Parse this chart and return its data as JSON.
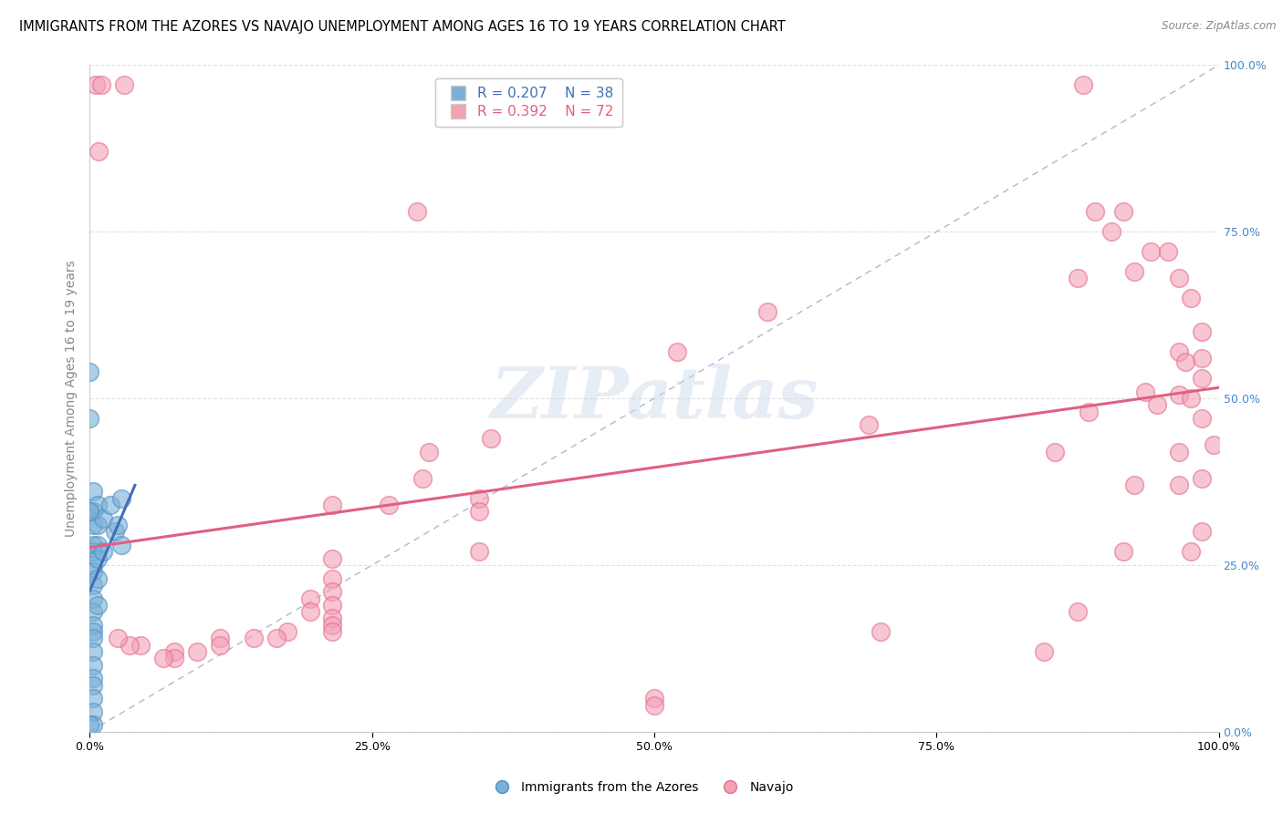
{
  "title": "IMMIGRANTS FROM THE AZORES VS NAVAJO UNEMPLOYMENT AMONG AGES 16 TO 19 YEARS CORRELATION CHART",
  "source": "Source: ZipAtlas.com",
  "ylabel": "Unemployment Among Ages 16 to 19 years",
  "xlim": [
    0.0,
    1.0
  ],
  "ylim": [
    0.0,
    1.0
  ],
  "xticks": [
    0.0,
    0.25,
    0.5,
    0.75,
    1.0
  ],
  "xtick_labels": [
    "0.0%",
    "25.0%",
    "50.0%",
    "75.0%",
    "100.0%"
  ],
  "ytick_labels_right": [
    "0.0%",
    "25.0%",
    "50.0%",
    "75.0%",
    "100.0%"
  ],
  "watermark_text": "ZIPatlas",
  "azores_points": [
    [
      0.0,
      0.54
    ],
    [
      0.0,
      0.47
    ],
    [
      0.0,
      0.33
    ],
    [
      0.003,
      0.36
    ],
    [
      0.003,
      0.33
    ],
    [
      0.003,
      0.31
    ],
    [
      0.003,
      0.28
    ],
    [
      0.003,
      0.27
    ],
    [
      0.003,
      0.25
    ],
    [
      0.003,
      0.24
    ],
    [
      0.003,
      0.22
    ],
    [
      0.003,
      0.2
    ],
    [
      0.003,
      0.18
    ],
    [
      0.003,
      0.16
    ],
    [
      0.003,
      0.15
    ],
    [
      0.003,
      0.14
    ],
    [
      0.003,
      0.12
    ],
    [
      0.003,
      0.1
    ],
    [
      0.003,
      0.08
    ],
    [
      0.003,
      0.07
    ],
    [
      0.003,
      0.05
    ],
    [
      0.003,
      0.03
    ],
    [
      0.003,
      0.01
    ],
    [
      0.007,
      0.34
    ],
    [
      0.007,
      0.31
    ],
    [
      0.007,
      0.28
    ],
    [
      0.007,
      0.26
    ],
    [
      0.007,
      0.23
    ],
    [
      0.007,
      0.19
    ],
    [
      0.012,
      0.32
    ],
    [
      0.012,
      0.27
    ],
    [
      0.018,
      0.34
    ],
    [
      0.022,
      0.3
    ],
    [
      0.025,
      0.31
    ],
    [
      0.028,
      0.35
    ],
    [
      0.028,
      0.28
    ],
    [
      0.0,
      0.01
    ],
    [
      0.0,
      0.33
    ]
  ],
  "navajo_points": [
    [
      0.005,
      0.97
    ],
    [
      0.01,
      0.97
    ],
    [
      0.03,
      0.97
    ],
    [
      0.88,
      0.97
    ],
    [
      0.008,
      0.87
    ],
    [
      0.29,
      0.78
    ],
    [
      0.89,
      0.78
    ],
    [
      0.915,
      0.78
    ],
    [
      0.905,
      0.75
    ],
    [
      0.94,
      0.72
    ],
    [
      0.955,
      0.72
    ],
    [
      0.925,
      0.69
    ],
    [
      0.875,
      0.68
    ],
    [
      0.965,
      0.68
    ],
    [
      0.975,
      0.65
    ],
    [
      0.6,
      0.63
    ],
    [
      0.985,
      0.6
    ],
    [
      0.52,
      0.57
    ],
    [
      0.965,
      0.57
    ],
    [
      0.985,
      0.56
    ],
    [
      0.97,
      0.555
    ],
    [
      0.985,
      0.53
    ],
    [
      0.935,
      0.51
    ],
    [
      0.965,
      0.505
    ],
    [
      0.945,
      0.49
    ],
    [
      0.975,
      0.5
    ],
    [
      0.885,
      0.48
    ],
    [
      0.985,
      0.47
    ],
    [
      0.69,
      0.46
    ],
    [
      0.995,
      0.43
    ],
    [
      0.855,
      0.42
    ],
    [
      0.965,
      0.42
    ],
    [
      0.985,
      0.38
    ],
    [
      0.925,
      0.37
    ],
    [
      0.965,
      0.37
    ],
    [
      0.985,
      0.3
    ],
    [
      0.975,
      0.27
    ],
    [
      0.355,
      0.44
    ],
    [
      0.3,
      0.42
    ],
    [
      0.295,
      0.38
    ],
    [
      0.345,
      0.35
    ],
    [
      0.265,
      0.34
    ],
    [
      0.215,
      0.34
    ],
    [
      0.345,
      0.33
    ],
    [
      0.345,
      0.27
    ],
    [
      0.215,
      0.26
    ],
    [
      0.215,
      0.23
    ],
    [
      0.215,
      0.21
    ],
    [
      0.195,
      0.2
    ],
    [
      0.215,
      0.19
    ],
    [
      0.195,
      0.18
    ],
    [
      0.215,
      0.17
    ],
    [
      0.215,
      0.16
    ],
    [
      0.215,
      0.15
    ],
    [
      0.175,
      0.15
    ],
    [
      0.165,
      0.14
    ],
    [
      0.145,
      0.14
    ],
    [
      0.115,
      0.14
    ],
    [
      0.115,
      0.13
    ],
    [
      0.095,
      0.12
    ],
    [
      0.075,
      0.12
    ],
    [
      0.075,
      0.11
    ],
    [
      0.065,
      0.11
    ],
    [
      0.045,
      0.13
    ],
    [
      0.035,
      0.13
    ],
    [
      0.025,
      0.14
    ],
    [
      0.5,
      0.05
    ],
    [
      0.5,
      0.04
    ],
    [
      0.7,
      0.15
    ],
    [
      0.845,
      0.12
    ],
    [
      0.875,
      0.18
    ],
    [
      0.915,
      0.27
    ]
  ],
  "azores_trendline_xrange": [
    0.0,
    0.04
  ],
  "navajo_trendline_xrange": [
    0.0,
    1.0
  ],
  "azores_color": "#7ab0d8",
  "azores_edge_color": "#5090c0",
  "navajo_color": "#f4a0b5",
  "navajo_edge_color": "#e07090",
  "azores_line_color": "#4070b8",
  "navajo_line_color": "#e06080",
  "diagonal_color": "#b0b8d0",
  "grid_color": "#e0e0e0",
  "right_tick_color": "#4488cc",
  "title_fontsize": 10.5,
  "axis_label_fontsize": 10,
  "tick_fontsize": 9,
  "legend_fontsize": 11,
  "source_fontsize": 8.5,
  "background_color": "#ffffff"
}
